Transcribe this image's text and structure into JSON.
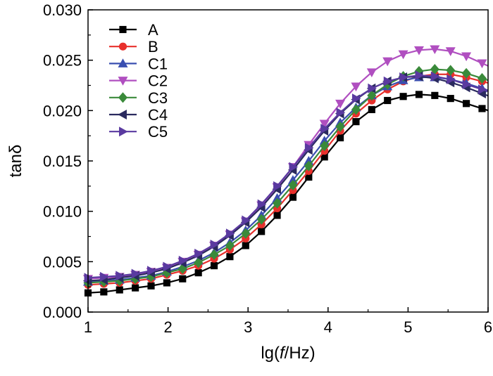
{
  "chart_data": {
    "type": "line",
    "title": "",
    "xlabel": {
      "pre": "lg(",
      "italic": "f",
      "post": "/Hz)"
    },
    "ylabel": "tanδ",
    "xlim": [
      1,
      6
    ],
    "ylim": [
      0,
      0.03
    ],
    "x_ticks": [
      "1",
      "2",
      "3",
      "4",
      "5",
      "6"
    ],
    "y_ticks": [
      "0.000",
      "0.005",
      "0.010",
      "0.015",
      "0.020",
      "0.025",
      "0.030"
    ],
    "legend_position": "top-left",
    "x": [
      1.0,
      1.197,
      1.394,
      1.591,
      1.788,
      1.985,
      2.182,
      2.379,
      2.576,
      2.773,
      2.97,
      3.167,
      3.364,
      3.561,
      3.758,
      3.955,
      4.152,
      4.349,
      4.546,
      4.743,
      4.94,
      5.137,
      5.334,
      5.531,
      5.728,
      5.925
    ],
    "series": [
      {
        "name": "A",
        "color": "#000000",
        "marker": "square",
        "values": [
          0.0019,
          0.002,
          0.0022,
          0.0024,
          0.0026,
          0.0029,
          0.0033,
          0.0039,
          0.0046,
          0.0055,
          0.0066,
          0.008,
          0.0096,
          0.0114,
          0.0134,
          0.0154,
          0.0173,
          0.0189,
          0.0201,
          0.021,
          0.0214,
          0.0216,
          0.0215,
          0.0212,
          0.0207,
          0.0202
        ]
      },
      {
        "name": "B",
        "color": "#e8302c",
        "marker": "circle",
        "values": [
          0.0027,
          0.0028,
          0.0029,
          0.0031,
          0.0033,
          0.0037,
          0.0041,
          0.0046,
          0.0053,
          0.0062,
          0.0073,
          0.0087,
          0.0103,
          0.0121,
          0.014,
          0.016,
          0.018,
          0.0197,
          0.021,
          0.0221,
          0.0229,
          0.0234,
          0.0236,
          0.0236,
          0.0233,
          0.0229
        ]
      },
      {
        "name": "C1",
        "color": "#3a4fb0",
        "marker": "triangle-up",
        "values": [
          0.003,
          0.0031,
          0.0032,
          0.0034,
          0.0036,
          0.004,
          0.0045,
          0.0051,
          0.0059,
          0.0069,
          0.0081,
          0.0096,
          0.0113,
          0.0131,
          0.015,
          0.017,
          0.0188,
          0.0203,
          0.0215,
          0.0224,
          0.023,
          0.0233,
          0.0233,
          0.0231,
          0.0227,
          0.0222
        ]
      },
      {
        "name": "C2",
        "color": "#b04fc0",
        "marker": "triangle-down",
        "values": [
          0.0033,
          0.0034,
          0.0035,
          0.0037,
          0.004,
          0.0044,
          0.005,
          0.0057,
          0.0066,
          0.0077,
          0.009,
          0.0106,
          0.0124,
          0.0144,
          0.0166,
          0.0187,
          0.0207,
          0.0224,
          0.0238,
          0.0249,
          0.0256,
          0.026,
          0.0261,
          0.0259,
          0.0254,
          0.0247
        ]
      },
      {
        "name": "C3",
        "color": "#3a8a3a",
        "marker": "diamond",
        "values": [
          0.0029,
          0.003,
          0.0031,
          0.0033,
          0.0035,
          0.0039,
          0.0043,
          0.0049,
          0.0057,
          0.0066,
          0.0078,
          0.0092,
          0.0108,
          0.0126,
          0.0145,
          0.0165,
          0.0184,
          0.0201,
          0.0215,
          0.0226,
          0.0234,
          0.0239,
          0.0241,
          0.024,
          0.0237,
          0.0232
        ]
      },
      {
        "name": "C4",
        "color": "#2a2a5e",
        "marker": "triangle-left",
        "values": [
          0.0031,
          0.0032,
          0.0034,
          0.0036,
          0.0039,
          0.0043,
          0.0049,
          0.0056,
          0.0065,
          0.0076,
          0.0089,
          0.0104,
          0.0122,
          0.0141,
          0.0161,
          0.018,
          0.0197,
          0.0211,
          0.0222,
          0.0229,
          0.0233,
          0.0234,
          0.0232,
          0.0228,
          0.0223,
          0.0217
        ]
      },
      {
        "name": "C5",
        "color": "#5a3aa0",
        "marker": "triangle-right",
        "values": [
          0.0034,
          0.0035,
          0.0036,
          0.0038,
          0.0041,
          0.0045,
          0.0051,
          0.0058,
          0.0067,
          0.0078,
          0.0091,
          0.0107,
          0.0125,
          0.0144,
          0.0163,
          0.0182,
          0.0198,
          0.0212,
          0.0222,
          0.0229,
          0.0233,
          0.0235,
          0.0234,
          0.0231,
          0.0226,
          0.0221
        ]
      }
    ]
  }
}
